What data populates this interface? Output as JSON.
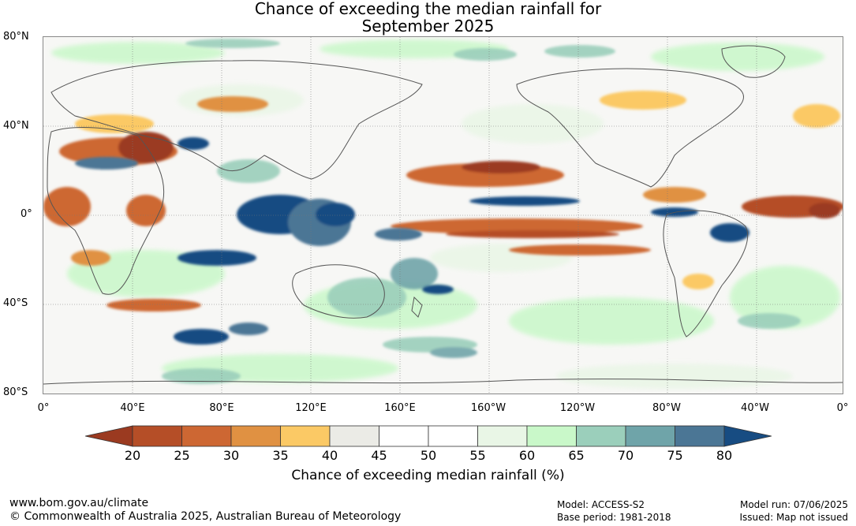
{
  "title": {
    "line1": "Chance of exceeding the median rainfall for",
    "line2": "September 2025"
  },
  "lat_labels": [
    "80°N",
    "40°N",
    "0°",
    "40°S",
    "80°S"
  ],
  "lon_labels": [
    "0°",
    "40°E",
    "80°E",
    "120°E",
    "160°E",
    "160°W",
    "120°W",
    "80°W",
    "40°W",
    "0°"
  ],
  "colorbar": {
    "ticks": [
      "20",
      "25",
      "30",
      "35",
      "40",
      "45",
      "50",
      "55",
      "60",
      "65",
      "70",
      "75",
      "80"
    ],
    "colors": [
      "#9b3a20",
      "#b54e27",
      "#cd6733",
      "#e09142",
      "#fbc965",
      "#ebebe6",
      "#ffffff",
      "#ffffff",
      "#e9f6e6",
      "#c9f8c9",
      "#9bcfbb",
      "#6fa4a9",
      "#4b7695",
      "#174c82"
    ],
    "title": "Chance of exceeding median rainfall (%)"
  },
  "footer": {
    "website": "www.bom.gov.au/climate",
    "copyright": "© Commonwealth of Australia 2025, Australian Bureau of Meteorology",
    "model": "Model: ACCESS-S2",
    "base_period": "Base period: 1981-2018",
    "model_run": "Model run: 07/06/2025",
    "issued": "Issued: Map not issued"
  }
}
